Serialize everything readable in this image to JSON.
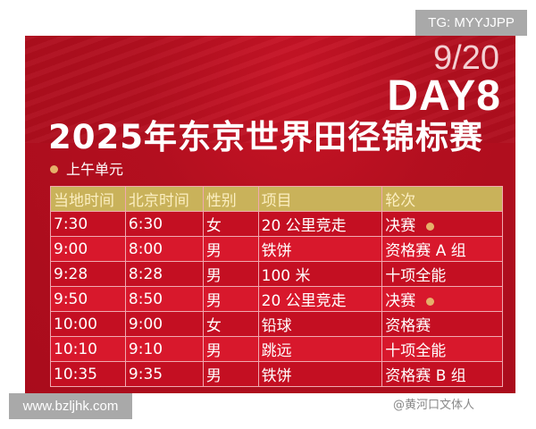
{
  "poster": {
    "date": "9/20",
    "day": "DAY8",
    "title": "2025年东京世界田径锦标赛",
    "session": "上午单元",
    "credit": "@黄河口文体人",
    "table": {
      "headers": [
        "当地时间",
        "北京时间",
        "性别",
        "项目",
        "轮次"
      ],
      "rows": [
        {
          "local": "7:30",
          "beijing": "6:30",
          "gender": "女",
          "event": "20 公里竞走",
          "round": "决赛",
          "final": true
        },
        {
          "local": "9:00",
          "beijing": "8:00",
          "gender": "男",
          "event": "铁饼",
          "round": "资格赛 A 组",
          "final": false
        },
        {
          "local": "9:28",
          "beijing": "8:28",
          "gender": "男",
          "event": "100 米",
          "round": "十项全能",
          "final": false
        },
        {
          "local": "9:50",
          "beijing": "8:50",
          "gender": "男",
          "event": "20 公里竞走",
          "round": "决赛",
          "final": true
        },
        {
          "local": "10:00",
          "beijing": "9:00",
          "gender": "女",
          "event": "铅球",
          "round": "资格赛",
          "final": false
        },
        {
          "local": "10:10",
          "beijing": "9:10",
          "gender": "男",
          "event": "跳远",
          "round": "十项全能",
          "final": false
        },
        {
          "local": "10:35",
          "beijing": "9:35",
          "gender": "男",
          "event": "铁饼",
          "round": "资格赛 B 组",
          "final": false
        }
      ]
    }
  },
  "watermarks": {
    "top_right": "TG: MYYJJPP",
    "bottom_left": "www.bzljhk.com"
  }
}
